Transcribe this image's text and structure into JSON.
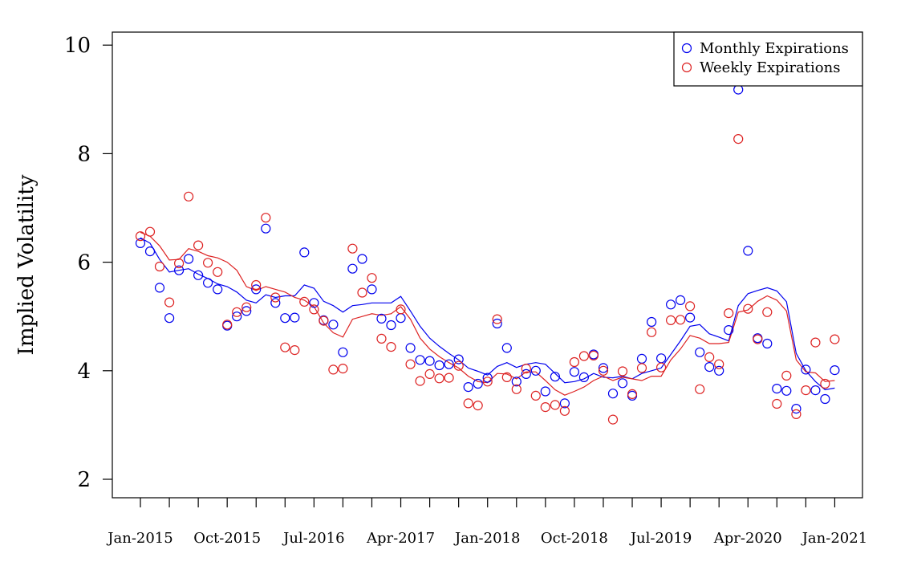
{
  "chart_data": {
    "type": "scatter",
    "ylabel": "Implied Volatility",
    "xlabel": "",
    "ylim": [
      2,
      10
    ],
    "y_ticks": [
      2,
      4,
      6,
      8,
      10
    ],
    "x_start": "Jan-2015",
    "x_tick_labels": [
      "Jan-2015",
      "Oct-2015",
      "Jul-2016",
      "Apr-2017",
      "Jan-2018",
      "Oct-2018",
      "Jul-2019",
      "Apr-2020",
      "Jan-2021"
    ],
    "x_minor_tick_every_months": 3,
    "legend_position": "top-right",
    "colors": {
      "monthly": "#0000ee",
      "weekly": "#dd2222"
    },
    "series": [
      {
        "name": "Monthly Expirations",
        "style": "points+line",
        "points": [
          [
            "2015-01",
            6.35
          ],
          [
            "2015-02",
            6.2
          ],
          [
            "2015-03",
            5.53
          ],
          [
            "2015-04",
            4.97
          ],
          [
            "2015-05",
            5.85
          ],
          [
            "2015-06",
            6.06
          ],
          [
            "2015-07",
            5.76
          ],
          [
            "2015-08",
            5.62
          ],
          [
            "2015-09",
            5.5
          ],
          [
            "2015-10",
            4.83
          ],
          [
            "2015-11",
            5.0
          ],
          [
            "2015-12",
            5.1
          ],
          [
            "2016-01",
            5.5
          ],
          [
            "2016-02",
            6.62
          ],
          [
            "2016-03",
            5.25
          ],
          [
            "2016-04",
            4.97
          ],
          [
            "2016-05",
            4.98
          ],
          [
            "2016-06",
            6.18
          ],
          [
            "2016-07",
            5.25
          ],
          [
            "2016-08",
            4.93
          ],
          [
            "2016-09",
            4.85
          ],
          [
            "2016-10",
            4.34
          ],
          [
            "2016-11",
            5.88
          ],
          [
            "2016-12",
            6.06
          ],
          [
            "2017-01",
            5.5
          ],
          [
            "2017-02",
            4.96
          ],
          [
            "2017-03",
            4.84
          ],
          [
            "2017-04",
            4.97
          ],
          [
            "2017-05",
            4.42
          ],
          [
            "2017-06",
            4.2
          ],
          [
            "2017-07",
            4.18
          ],
          [
            "2017-08",
            4.1
          ],
          [
            "2017-09",
            4.12
          ],
          [
            "2017-10",
            4.21
          ],
          [
            "2017-11",
            3.7
          ],
          [
            "2017-12",
            3.76
          ],
          [
            "2018-01",
            3.87
          ],
          [
            "2018-02",
            4.87
          ],
          [
            "2018-03",
            4.42
          ],
          [
            "2018-04",
            3.8
          ],
          [
            "2018-05",
            3.94
          ],
          [
            "2018-06",
            4.0
          ],
          [
            "2018-07",
            3.62
          ],
          [
            "2018-08",
            3.89
          ],
          [
            "2018-09",
            3.4
          ],
          [
            "2018-10",
            3.98
          ],
          [
            "2018-11",
            3.88
          ],
          [
            "2018-12",
            4.3
          ],
          [
            "2019-01",
            4.05
          ],
          [
            "2019-02",
            3.58
          ],
          [
            "2019-03",
            3.77
          ],
          [
            "2019-04",
            3.54
          ],
          [
            "2019-05",
            4.22
          ],
          [
            "2019-06",
            4.9
          ],
          [
            "2019-07",
            4.23
          ],
          [
            "2019-08",
            5.22
          ],
          [
            "2019-09",
            5.3
          ],
          [
            "2019-10",
            4.98
          ],
          [
            "2019-11",
            4.34
          ],
          [
            "2019-12",
            4.07
          ],
          [
            "2020-01",
            4.0
          ],
          [
            "2020-02",
            4.75
          ],
          [
            "2020-03",
            9.18
          ],
          [
            "2020-04",
            6.21
          ],
          [
            "2020-05",
            4.6
          ],
          [
            "2020-06",
            4.5
          ],
          [
            "2020-07",
            3.67
          ],
          [
            "2020-08",
            3.63
          ],
          [
            "2020-09",
            3.3
          ],
          [
            "2020-10",
            4.02
          ],
          [
            "2020-11",
            3.64
          ],
          [
            "2020-12",
            3.48
          ],
          [
            "2021-01",
            4.01
          ]
        ],
        "trend": [
          [
            "2015-01",
            6.45
          ],
          [
            "2015-02",
            6.35
          ],
          [
            "2015-03",
            6.05
          ],
          [
            "2015-04",
            5.82
          ],
          [
            "2015-05",
            5.85
          ],
          [
            "2015-06",
            5.88
          ],
          [
            "2015-07",
            5.78
          ],
          [
            "2015-08",
            5.7
          ],
          [
            "2015-09",
            5.6
          ],
          [
            "2015-10",
            5.55
          ],
          [
            "2015-11",
            5.45
          ],
          [
            "2015-12",
            5.3
          ],
          [
            "2016-01",
            5.25
          ],
          [
            "2016-02",
            5.4
          ],
          [
            "2016-03",
            5.35
          ],
          [
            "2016-04",
            5.38
          ],
          [
            "2016-05",
            5.38
          ],
          [
            "2016-06",
            5.58
          ],
          [
            "2016-07",
            5.52
          ],
          [
            "2016-08",
            5.28
          ],
          [
            "2016-09",
            5.2
          ],
          [
            "2016-10",
            5.08
          ],
          [
            "2016-11",
            5.2
          ],
          [
            "2016-12",
            5.22
          ],
          [
            "2017-01",
            5.25
          ],
          [
            "2017-02",
            5.25
          ],
          [
            "2017-03",
            5.25
          ],
          [
            "2017-04",
            5.37
          ],
          [
            "2017-05",
            5.1
          ],
          [
            "2017-06",
            4.82
          ],
          [
            "2017-07",
            4.6
          ],
          [
            "2017-08",
            4.45
          ],
          [
            "2017-09",
            4.32
          ],
          [
            "2017-10",
            4.2
          ],
          [
            "2017-11",
            4.05
          ],
          [
            "2017-12",
            3.99
          ],
          [
            "2018-01",
            3.92
          ],
          [
            "2018-02",
            4.08
          ],
          [
            "2018-03",
            4.15
          ],
          [
            "2018-04",
            4.06
          ],
          [
            "2018-05",
            4.12
          ],
          [
            "2018-06",
            4.15
          ],
          [
            "2018-07",
            4.12
          ],
          [
            "2018-08",
            3.95
          ],
          [
            "2018-09",
            3.78
          ],
          [
            "2018-10",
            3.8
          ],
          [
            "2018-11",
            3.85
          ],
          [
            "2018-12",
            3.95
          ],
          [
            "2019-01",
            3.88
          ],
          [
            "2019-02",
            3.87
          ],
          [
            "2019-03",
            3.9
          ],
          [
            "2019-04",
            3.85
          ],
          [
            "2019-05",
            3.95
          ],
          [
            "2019-06",
            4.0
          ],
          [
            "2019-07",
            4.05
          ],
          [
            "2019-08",
            4.3
          ],
          [
            "2019-09",
            4.55
          ],
          [
            "2019-10",
            4.82
          ],
          [
            "2019-11",
            4.85
          ],
          [
            "2019-12",
            4.68
          ],
          [
            "2020-01",
            4.62
          ],
          [
            "2020-02",
            4.55
          ],
          [
            "2020-03",
            5.2
          ],
          [
            "2020-04",
            5.42
          ],
          [
            "2020-05",
            5.48
          ],
          [
            "2020-06",
            5.53
          ],
          [
            "2020-07",
            5.47
          ],
          [
            "2020-08",
            5.27
          ],
          [
            "2020-09",
            4.32
          ],
          [
            "2020-10",
            4.0
          ],
          [
            "2020-11",
            3.8
          ],
          [
            "2020-12",
            3.65
          ],
          [
            "2021-01",
            3.68
          ]
        ]
      },
      {
        "name": "Weekly Expirations",
        "style": "points+line",
        "points": [
          [
            "2015-01",
            6.48
          ],
          [
            "2015-02",
            6.56
          ],
          [
            "2015-03",
            5.92
          ],
          [
            "2015-04",
            5.26
          ],
          [
            "2015-05",
            5.98
          ],
          [
            "2015-06",
            7.21
          ],
          [
            "2015-07",
            6.31
          ],
          [
            "2015-08",
            5.99
          ],
          [
            "2015-09",
            5.82
          ],
          [
            "2015-10",
            4.85
          ],
          [
            "2015-11",
            5.08
          ],
          [
            "2015-12",
            5.17
          ],
          [
            "2016-01",
            5.58
          ],
          [
            "2016-02",
            6.82
          ],
          [
            "2016-03",
            5.35
          ],
          [
            "2016-04",
            4.43
          ],
          [
            "2016-05",
            4.38
          ],
          [
            "2016-06",
            5.27
          ],
          [
            "2016-07",
            5.13
          ],
          [
            "2016-08",
            4.92
          ],
          [
            "2016-09",
            4.02
          ],
          [
            "2016-10",
            4.04
          ],
          [
            "2016-11",
            6.25
          ],
          [
            "2016-12",
            5.44
          ],
          [
            "2017-01",
            5.71
          ],
          [
            "2017-02",
            4.59
          ],
          [
            "2017-03",
            4.44
          ],
          [
            "2017-04",
            5.13
          ],
          [
            "2017-05",
            4.12
          ],
          [
            "2017-06",
            3.81
          ],
          [
            "2017-07",
            3.94
          ],
          [
            "2017-08",
            3.86
          ],
          [
            "2017-09",
            3.87
          ],
          [
            "2017-10",
            4.09
          ],
          [
            "2017-11",
            3.4
          ],
          [
            "2017-12",
            3.36
          ],
          [
            "2018-01",
            3.8
          ],
          [
            "2018-02",
            4.95
          ],
          [
            "2018-03",
            3.88
          ],
          [
            "2018-04",
            3.66
          ],
          [
            "2018-05",
            4.04
          ],
          [
            "2018-06",
            3.54
          ],
          [
            "2018-07",
            3.33
          ],
          [
            "2018-08",
            3.37
          ],
          [
            "2018-09",
            3.26
          ],
          [
            "2018-10",
            4.16
          ],
          [
            "2018-11",
            4.27
          ],
          [
            "2018-12",
            4.28
          ],
          [
            "2019-01",
            4.0
          ],
          [
            "2019-02",
            3.1
          ],
          [
            "2019-03",
            3.99
          ],
          [
            "2019-04",
            3.57
          ],
          [
            "2019-05",
            4.05
          ],
          [
            "2019-06",
            4.71
          ],
          [
            "2019-07",
            4.06
          ],
          [
            "2019-08",
            4.93
          ],
          [
            "2019-09",
            4.94
          ],
          [
            "2019-10",
            5.19
          ],
          [
            "2019-11",
            3.66
          ],
          [
            "2019-12",
            4.25
          ],
          [
            "2020-01",
            4.12
          ],
          [
            "2020-02",
            5.06
          ],
          [
            "2020-03",
            8.27
          ],
          [
            "2020-04",
            5.14
          ],
          [
            "2020-05",
            4.58
          ],
          [
            "2020-06",
            5.08
          ],
          [
            "2020-07",
            3.39
          ],
          [
            "2020-08",
            3.91
          ],
          [
            "2020-09",
            3.2
          ],
          [
            "2020-10",
            3.64
          ],
          [
            "2020-11",
            4.52
          ],
          [
            "2020-12",
            3.76
          ],
          [
            "2021-01",
            4.58
          ]
        ],
        "trend": [
          [
            "2015-01",
            6.55
          ],
          [
            "2015-02",
            6.48
          ],
          [
            "2015-03",
            6.3
          ],
          [
            "2015-04",
            6.04
          ],
          [
            "2015-05",
            6.05
          ],
          [
            "2015-06",
            6.25
          ],
          [
            "2015-07",
            6.2
          ],
          [
            "2015-08",
            6.12
          ],
          [
            "2015-09",
            6.08
          ],
          [
            "2015-10",
            6.0
          ],
          [
            "2015-11",
            5.85
          ],
          [
            "2015-12",
            5.55
          ],
          [
            "2016-01",
            5.48
          ],
          [
            "2016-02",
            5.55
          ],
          [
            "2016-03",
            5.5
          ],
          [
            "2016-04",
            5.45
          ],
          [
            "2016-05",
            5.35
          ],
          [
            "2016-06",
            5.3
          ],
          [
            "2016-07",
            5.18
          ],
          [
            "2016-08",
            4.88
          ],
          [
            "2016-09",
            4.7
          ],
          [
            "2016-10",
            4.62
          ],
          [
            "2016-11",
            4.95
          ],
          [
            "2016-12",
            5.0
          ],
          [
            "2017-01",
            5.05
          ],
          [
            "2017-02",
            5.02
          ],
          [
            "2017-03",
            5.05
          ],
          [
            "2017-04",
            5.18
          ],
          [
            "2017-05",
            4.95
          ],
          [
            "2017-06",
            4.6
          ],
          [
            "2017-07",
            4.4
          ],
          [
            "2017-08",
            4.26
          ],
          [
            "2017-09",
            4.15
          ],
          [
            "2017-10",
            4.05
          ],
          [
            "2017-11",
            3.9
          ],
          [
            "2017-12",
            3.8
          ],
          [
            "2018-01",
            3.78
          ],
          [
            "2018-02",
            3.95
          ],
          [
            "2018-03",
            3.94
          ],
          [
            "2018-04",
            3.85
          ],
          [
            "2018-05",
            3.98
          ],
          [
            "2018-06",
            3.98
          ],
          [
            "2018-07",
            3.82
          ],
          [
            "2018-08",
            3.65
          ],
          [
            "2018-09",
            3.55
          ],
          [
            "2018-10",
            3.62
          ],
          [
            "2018-11",
            3.7
          ],
          [
            "2018-12",
            3.82
          ],
          [
            "2019-01",
            3.9
          ],
          [
            "2019-02",
            3.82
          ],
          [
            "2019-03",
            3.88
          ],
          [
            "2019-04",
            3.85
          ],
          [
            "2019-05",
            3.82
          ],
          [
            "2019-06",
            3.9
          ],
          [
            "2019-07",
            3.9
          ],
          [
            "2019-08",
            4.2
          ],
          [
            "2019-09",
            4.4
          ],
          [
            "2019-10",
            4.65
          ],
          [
            "2019-11",
            4.6
          ],
          [
            "2019-12",
            4.5
          ],
          [
            "2020-01",
            4.5
          ],
          [
            "2020-02",
            4.52
          ],
          [
            "2020-03",
            5.08
          ],
          [
            "2020-04",
            5.12
          ],
          [
            "2020-05",
            5.28
          ],
          [
            "2020-06",
            5.38
          ],
          [
            "2020-07",
            5.3
          ],
          [
            "2020-08",
            5.1
          ],
          [
            "2020-09",
            4.2
          ],
          [
            "2020-10",
            3.98
          ],
          [
            "2020-11",
            3.96
          ],
          [
            "2020-12",
            3.8
          ],
          [
            "2021-01",
            3.82
          ]
        ]
      }
    ]
  }
}
